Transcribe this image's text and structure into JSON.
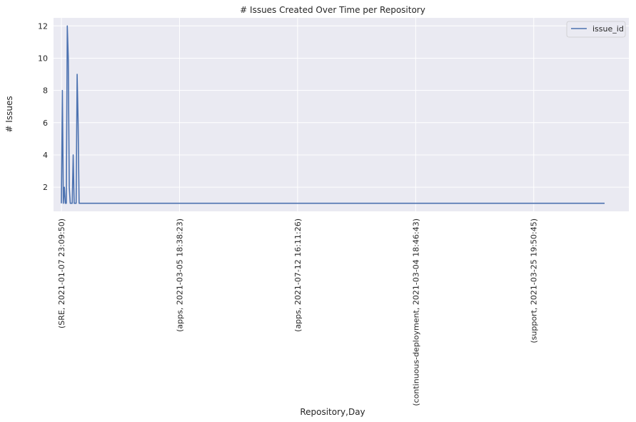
{
  "chart_data": {
    "type": "line",
    "title": "# Issues Created Over Time per Repository",
    "xlabel": "Repository,Day",
    "ylabel": "# Issues",
    "ylim": [
      0.5,
      12.5
    ],
    "yticks": [
      2,
      4,
      6,
      8,
      10,
      12
    ],
    "x_count": 553,
    "xticks": [
      {
        "index": 0,
        "label": "(SRE, 2021-01-07 23:09:50)"
      },
      {
        "index": 120,
        "label": "(apps, 2021-03-05 18:38:23)"
      },
      {
        "index": 240,
        "label": "(apps, 2021-07-12 16:11:26)"
      },
      {
        "index": 360,
        "label": "(continuous-deployment, 2021-03-04 18:46:43)"
      },
      {
        "index": 480,
        "label": "(support, 2021-03-25 19:50:45)"
      }
    ],
    "grid": true,
    "legend_position": "top-right",
    "colors": {
      "background": "#eaeaf2",
      "grid": "#ffffff",
      "line": "#4c72b0"
    },
    "series": [
      {
        "name": "issue_id",
        "baseline": 1,
        "peaks": [
          {
            "index": 1,
            "value": 8
          },
          {
            "index": 3,
            "value": 2
          },
          {
            "index": 6,
            "value": 12
          },
          {
            "index": 7,
            "value": 10
          },
          {
            "index": 8,
            "value": 2
          },
          {
            "index": 12,
            "value": 4
          },
          {
            "index": 16,
            "value": 9
          },
          {
            "index": 17,
            "value": 6
          }
        ]
      }
    ]
  }
}
